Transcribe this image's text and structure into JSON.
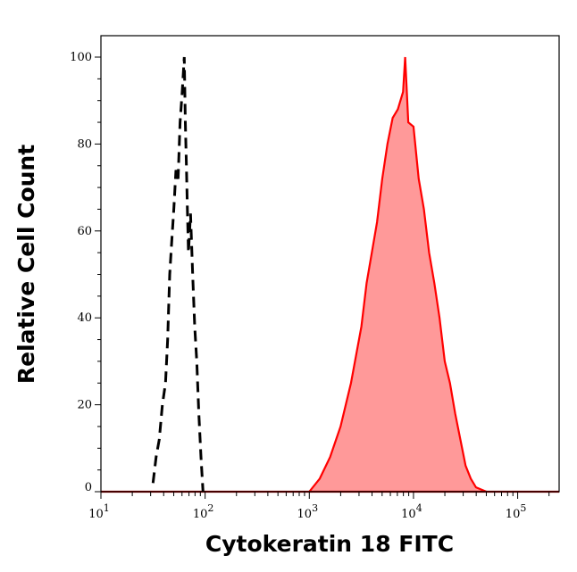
{
  "chart_data": {
    "type": "area",
    "title": "",
    "xlabel": "Cytokeratin 18 FITC",
    "ylabel": "Relative Cell Count",
    "x_scale": "log",
    "xlim": [
      10,
      250000
    ],
    "ylim": [
      0,
      100
    ],
    "grid": false,
    "x_ticks": [
      {
        "base": "10",
        "exp": "1",
        "value": 10
      },
      {
        "base": "10",
        "exp": "2",
        "value": 100
      },
      {
        "base": "10",
        "exp": "3",
        "value": 1000
      },
      {
        "base": "10",
        "exp": "4",
        "value": 10000
      },
      {
        "base": "10",
        "exp": "5",
        "value": 100000
      }
    ],
    "y_ticks": [
      "0",
      "20",
      "40",
      "60",
      "80",
      "100"
    ],
    "series": [
      {
        "style": "dashed-line",
        "color": "#000000",
        "x": [
          31.6,
          33.9,
          36.3,
          38.9,
          41.7,
          43.7,
          45.7,
          47.9,
          50.1,
          52.5,
          55.0,
          57.5,
          60.3,
          63.1,
          64.6,
          66.1,
          67.6,
          69.2,
          72.4,
          75.9,
          79.4,
          83.2,
          87.1,
          91.2,
          95.5
        ],
        "y": [
          2,
          8,
          12,
          20,
          25,
          35,
          50,
          58,
          65,
          74,
          72,
          85,
          92,
          100,
          85,
          75,
          65,
          55,
          64,
          50,
          38,
          30,
          18,
          8,
          0
        ]
      },
      {
        "style": "filled",
        "color": "#ff0000",
        "fill": "#ff9999",
        "x": [
          1000,
          1259,
          1585,
          1995,
          2512,
          3162,
          3548,
          3981,
          4467,
          5012,
          5623,
          6310,
          7079,
          7943,
          8318,
          8913,
          10000,
          11220,
          12589,
          14125,
          15849,
          17783,
          19953,
          22387,
          25119,
          28184,
          31623,
          35481,
          39811,
          50119
        ],
        "y": [
          0,
          3,
          8,
          15,
          25,
          38,
          48,
          55,
          62,
          72,
          80,
          86,
          88,
          92,
          100,
          85,
          84,
          72,
          65,
          55,
          48,
          40,
          30,
          25,
          18,
          12,
          6,
          3,
          1,
          0
        ]
      }
    ]
  }
}
